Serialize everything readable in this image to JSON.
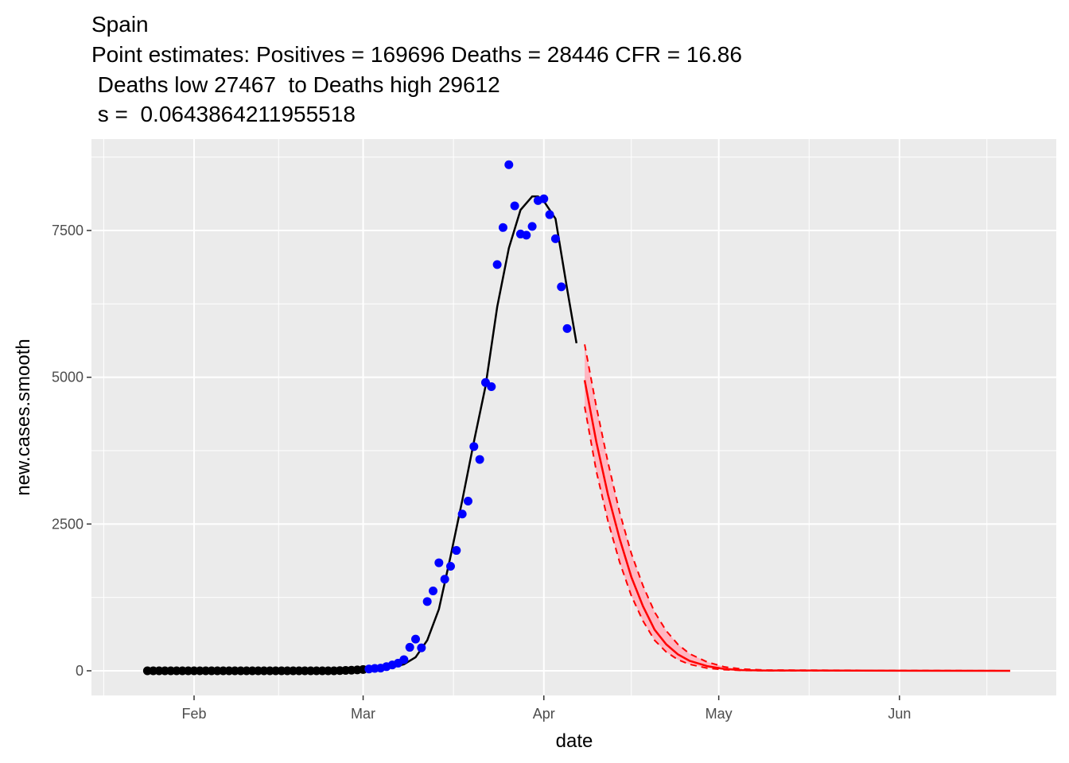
{
  "chart_data": {
    "type": "scatter",
    "title": [
      "Spain",
      "Point estimates: Positives = 169696 Deaths = 28446 CFR = 16.86",
      " Deaths low 27467  to Deaths high 29612",
      " s =  0.0643864211955518"
    ],
    "x_label": "date",
    "y_label": "new.cases.smooth",
    "xlim": [
      14.4,
      179.9
    ],
    "ylim": [
      -420,
      9057
    ],
    "xticks": [
      {
        "value": 32,
        "label": "Feb"
      },
      {
        "value": 61,
        "label": "Mar"
      },
      {
        "value": 92,
        "label": "Apr"
      },
      {
        "value": 122,
        "label": "May"
      },
      {
        "value": 153,
        "label": "Jun"
      }
    ],
    "yticks": [
      0,
      2500,
      5000,
      7500
    ],
    "xminor": [
      16.5,
      46.5,
      76.5,
      107,
      137.5,
      168
    ],
    "yminor": [
      1250,
      3750,
      6250,
      8750
    ],
    "grid": true,
    "ribbon": {
      "color": "#ffb6c1"
    },
    "series": [
      {
        "style": "dashed",
        "color": "#ff0000",
        "x": [
          99,
          101,
          103,
          105,
          107,
          109,
          111,
          113,
          115,
          117,
          120,
          123,
          126,
          130,
          172
        ],
        "values": [
          5560,
          4500,
          3550,
          2700,
          2000,
          1450,
          1000,
          680,
          450,
          290,
          150,
          65,
          30,
          12,
          0
        ]
      },
      {
        "style": "dashed",
        "color": "#ff0000",
        "x": [
          99,
          101,
          103,
          105,
          107,
          109,
          111,
          113,
          115,
          117,
          120,
          123,
          126,
          130,
          172
        ],
        "values": [
          4500,
          3400,
          2550,
          1850,
          1280,
          850,
          520,
          320,
          190,
          110,
          45,
          18,
          6,
          2,
          0
        ]
      },
      {
        "style": "line",
        "color": "#ff0000",
        "x": [
          99,
          101,
          103,
          105,
          107,
          109,
          111,
          113,
          115,
          117,
          120,
          123,
          126,
          130,
          172
        ],
        "values": [
          4950,
          3900,
          3000,
          2250,
          1600,
          1100,
          700,
          450,
          280,
          170,
          80,
          30,
          12,
          5,
          0
        ]
      },
      {
        "style": "line",
        "color": "#000000",
        "x": [
          24,
          50,
          58,
          62,
          64,
          66,
          68,
          70,
          72,
          74,
          76,
          78,
          80,
          82,
          84,
          86,
          88,
          90,
          91,
          92,
          94,
          96,
          97.6
        ],
        "values": [
          0,
          0,
          5,
          15,
          30,
          60,
          110,
          230,
          520,
          1050,
          1950,
          2900,
          3900,
          4850,
          6200,
          7200,
          7850,
          8080,
          8080,
          8000,
          7700,
          6500,
          5580
        ]
      },
      {
        "style": "points",
        "color": "#000000",
        "x": [
          24,
          25,
          26,
          27,
          28,
          29,
          30,
          31,
          32,
          33,
          34,
          35,
          36,
          37,
          38,
          39,
          40,
          41,
          42,
          43,
          44,
          45,
          46,
          47,
          48,
          49,
          50,
          51,
          52,
          53,
          54,
          55,
          56,
          57,
          58,
          59,
          60,
          61
        ],
        "values": [
          0,
          0,
          0,
          0,
          0,
          0,
          0,
          0,
          0,
          0,
          0,
          0,
          0,
          0,
          0,
          0,
          0,
          0,
          0,
          0,
          0,
          0,
          0,
          0,
          0,
          0,
          0,
          0,
          0,
          0,
          0,
          0,
          0,
          3,
          6,
          10,
          15,
          22
        ]
      },
      {
        "style": "points",
        "color": "#0000ff",
        "x": [
          62,
          63,
          64,
          65,
          66,
          67,
          68,
          69,
          70,
          71,
          72,
          73,
          74,
          75,
          76,
          77,
          78,
          79,
          80,
          81,
          82,
          83,
          84,
          85,
          86,
          87,
          88,
          89,
          90,
          91,
          92,
          93,
          94,
          95,
          96
        ],
        "values": [
          30,
          40,
          45,
          70,
          100,
          130,
          190,
          400,
          540,
          390,
          1180,
          1360,
          1840,
          1560,
          1780,
          2050,
          2670,
          2890,
          3820,
          3600,
          4910,
          4840,
          6920,
          7550,
          8620,
          7920,
          7440,
          7420,
          7570,
          8010,
          8040,
          7770,
          7360,
          6540,
          5830
        ]
      }
    ]
  }
}
